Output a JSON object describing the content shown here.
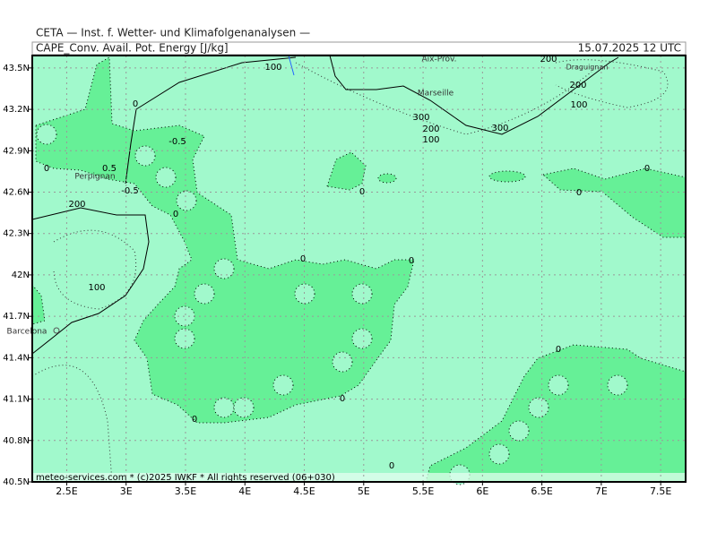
{
  "header": {
    "title": "CETA — Inst. f. Wetter- und Klimafolgenanalysen —",
    "parameter": "CAPE_Conv. Avail. Pot. Energy [J/kg]",
    "valid_time": "15.07.2025 12 UTC"
  },
  "map": {
    "xlim": [
      2.21,
      7.71
    ],
    "ylim": [
      40.5,
      43.59
    ],
    "grid": true,
    "xticks": [
      {
        "value": 2.5,
        "label": "2.5E"
      },
      {
        "value": 3,
        "label": "3E"
      },
      {
        "value": 3.5,
        "label": "3.5E"
      },
      {
        "value": 4,
        "label": "4E"
      },
      {
        "value": 4.5,
        "label": "4.5E"
      },
      {
        "value": 5,
        "label": "5E"
      },
      {
        "value": 5.5,
        "label": "5.5E"
      },
      {
        "value": 6,
        "label": "6E"
      },
      {
        "value": 6.5,
        "label": "6.5E"
      },
      {
        "value": 7,
        "label": "7E"
      },
      {
        "value": 7.5,
        "label": "7.5E"
      }
    ],
    "yticks": [
      {
        "value": 40.5,
        "label": "40.5N"
      },
      {
        "value": 40.8,
        "label": "40.8N"
      },
      {
        "value": 41.1,
        "label": "41.1N"
      },
      {
        "value": 41.4,
        "label": "41.4N"
      },
      {
        "value": 41.7,
        "label": "41.7N"
      },
      {
        "value": 42,
        "label": "42N"
      },
      {
        "value": 42.3,
        "label": "42.3N"
      },
      {
        "value": 42.6,
        "label": "42.6N"
      },
      {
        "value": 42.9,
        "label": "42.9N"
      },
      {
        "value": 43.2,
        "label": "43.2N"
      },
      {
        "value": 43.5,
        "label": "43.5N"
      }
    ],
    "places": [
      "Aix-Prov.",
      "Marseille",
      "Draguignan",
      "Perpignan",
      "Barcelona"
    ],
    "contour_labels": [
      "100",
      "0",
      "-0.5",
      "0.5",
      "0",
      "-0.5",
      "0",
      "200",
      "100",
      "0",
      "0",
      "0",
      "0",
      "0",
      "200",
      "200",
      "100",
      "300",
      "200",
      "100",
      "300",
      "0",
      "0",
      "0",
      "0"
    ]
  },
  "footer": "meteo-services.com * (c)2025 IWKF * All rights reserved (06+030)"
}
